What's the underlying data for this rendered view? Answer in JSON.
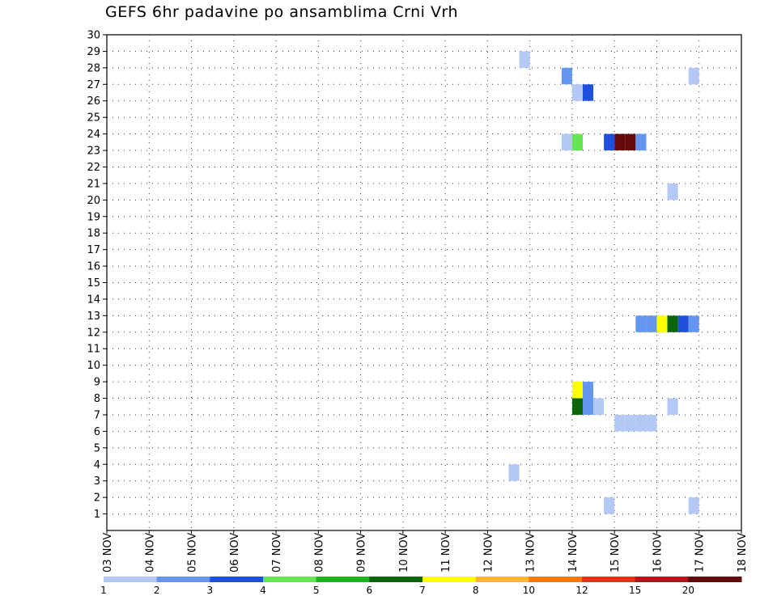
{
  "title": "GEFS 6hr padavine po ansamblima Crni Vrh",
  "chart_data": {
    "type": "heatmap",
    "title": "GEFS 6hr padavine po ansamblima Crni Vrh",
    "x_ticks": [
      "03 NOV",
      "04 NOV",
      "05 NOV",
      "06 NOV",
      "07 NOV",
      "08 NOV",
      "09 NOV",
      "10 NOV",
      "11 NOV",
      "12 NOV",
      "13 NOV",
      "14 NOV",
      "15 NOV",
      "16 NOV",
      "17 NOV",
      "18 NOV"
    ],
    "xlim": [
      "03 NOV",
      "18 NOV"
    ],
    "y_ticks": [
      1,
      2,
      3,
      4,
      5,
      6,
      7,
      8,
      9,
      10,
      11,
      12,
      13,
      14,
      15,
      16,
      17,
      18,
      19,
      20,
      21,
      22,
      23,
      24,
      25,
      26,
      27,
      28,
      29,
      30
    ],
    "ylim": [
      0,
      30
    ],
    "grid": true,
    "legend": {
      "placement": "bottom",
      "levels": [
        "1",
        "2",
        "3",
        "4",
        "5",
        "6",
        "7",
        "8",
        "10",
        "12",
        "15",
        "20"
      ],
      "colors": [
        "#b4c8f5",
        "#6496f0",
        "#1e50dc",
        "#64e650",
        "#1eb41e",
        "#0a640a",
        "#ffff00",
        "#ffb432",
        "#ff7800",
        "#e63214",
        "#b41414",
        "#640a0a"
      ]
    },
    "cells": [
      {
        "day": 12.75,
        "member": 29,
        "level": 1
      },
      {
        "day": 13.75,
        "member": 28,
        "level": 2
      },
      {
        "day": 16.75,
        "member": 28,
        "level": 1
      },
      {
        "day": 14.0,
        "member": 27,
        "level": 1
      },
      {
        "day": 14.25,
        "member": 27,
        "level": 3
      },
      {
        "day": 13.75,
        "member": 24,
        "level": 1
      },
      {
        "day": 14.0,
        "member": 24,
        "level": 4
      },
      {
        "day": 14.75,
        "member": 24,
        "level": 3
      },
      {
        "day": 15.0,
        "member": 24,
        "level": 12
      },
      {
        "day": 15.25,
        "member": 24,
        "level": 12
      },
      {
        "day": 15.5,
        "member": 24,
        "level": 2
      },
      {
        "day": 16.25,
        "member": 21,
        "level": 1
      },
      {
        "day": 15.5,
        "member": 13,
        "level": 2
      },
      {
        "day": 15.75,
        "member": 13,
        "level": 2
      },
      {
        "day": 16.0,
        "member": 13,
        "level": 7
      },
      {
        "day": 16.25,
        "member": 13,
        "level": 6
      },
      {
        "day": 16.5,
        "member": 13,
        "level": 3
      },
      {
        "day": 16.75,
        "member": 13,
        "level": 2
      },
      {
        "day": 14.0,
        "member": 9,
        "level": 7
      },
      {
        "day": 14.25,
        "member": 9,
        "level": 2
      },
      {
        "day": 14.0,
        "member": 8,
        "level": 6
      },
      {
        "day": 14.25,
        "member": 8,
        "level": 2
      },
      {
        "day": 14.5,
        "member": 8,
        "level": 1
      },
      {
        "day": 16.25,
        "member": 8,
        "level": 1
      },
      {
        "day": 15.0,
        "member": 7,
        "level": 1
      },
      {
        "day": 15.25,
        "member": 7,
        "level": 1
      },
      {
        "day": 15.5,
        "member": 7,
        "level": 1
      },
      {
        "day": 15.75,
        "member": 7,
        "level": 1
      },
      {
        "day": 12.5,
        "member": 4,
        "level": 1
      },
      {
        "day": 14.75,
        "member": 2,
        "level": 1
      },
      {
        "day": 16.75,
        "member": 2,
        "level": 1
      }
    ]
  }
}
